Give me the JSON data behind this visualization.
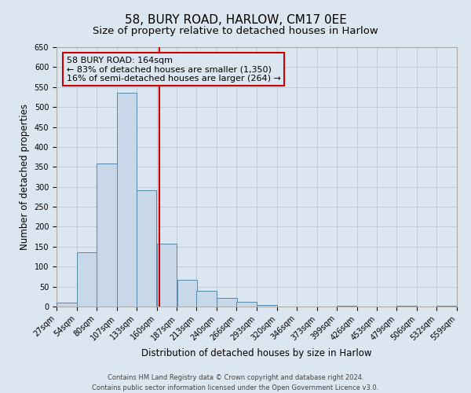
{
  "title": "58, BURY ROAD, HARLOW, CM17 0EE",
  "subtitle": "Size of property relative to detached houses in Harlow",
  "xlabel": "Distribution of detached houses by size in Harlow",
  "ylabel": "Number of detached properties",
  "bar_left_edges": [
    27,
    54,
    80,
    107,
    133,
    160,
    187,
    213,
    240,
    266,
    293,
    320,
    346,
    373,
    399,
    426,
    453,
    479,
    506,
    532
  ],
  "bar_heights": [
    10,
    136,
    358,
    535,
    291,
    157,
    67,
    40,
    22,
    12,
    3,
    0,
    0,
    0,
    1,
    0,
    0,
    1,
    0,
    2
  ],
  "bin_width": 27,
  "property_size": 164,
  "property_label": "58 BURY ROAD: 164sqm",
  "annotation_line1": "← 83% of detached houses are smaller (1,350)",
  "annotation_line2": "16% of semi-detached houses are larger (264) →",
  "bar_color": "#c8d8e8",
  "bar_edge_color": "#5588aa",
  "vline_color": "#cc0000",
  "annotation_box_edge_color": "#cc0000",
  "grid_color": "#c0ccd8",
  "background_color": "#dce6f0",
  "ylim": [
    0,
    650
  ],
  "yticks": [
    0,
    50,
    100,
    150,
    200,
    250,
    300,
    350,
    400,
    450,
    500,
    550,
    600,
    650
  ],
  "tick_labels": [
    "27sqm",
    "54sqm",
    "80sqm",
    "107sqm",
    "133sqm",
    "160sqm",
    "187sqm",
    "213sqm",
    "240sqm",
    "266sqm",
    "293sqm",
    "320sqm",
    "346sqm",
    "373sqm",
    "399sqm",
    "426sqm",
    "453sqm",
    "479sqm",
    "506sqm",
    "532sqm",
    "559sqm"
  ],
  "footer_line1": "Contains HM Land Registry data © Crown copyright and database right 2024.",
  "footer_line2": "Contains public sector information licensed under the Open Government Licence v3.0.",
  "title_fontsize": 11,
  "subtitle_fontsize": 9.5,
  "axis_label_fontsize": 8.5,
  "tick_fontsize": 7,
  "annotation_fontsize": 8,
  "footer_fontsize": 6
}
